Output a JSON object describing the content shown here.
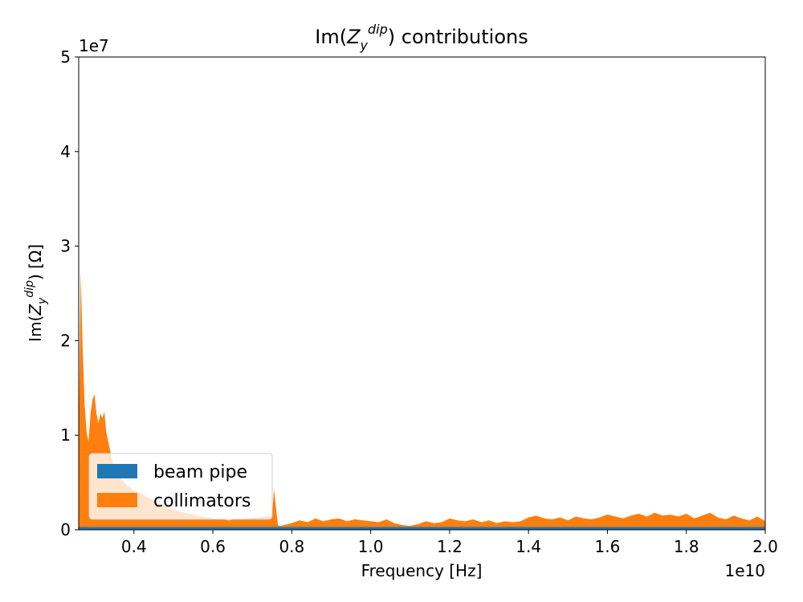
{
  "chart_data": {
    "type": "area",
    "stacked": true,
    "title": "Im(Z_y^dip) contributions",
    "title_parts": {
      "prefix": "Im(",
      "symbol": "Z",
      "sub": "y",
      "sup": "dip",
      "suffix": ") contributions"
    },
    "xlabel": "Frequency [Hz]",
    "ylabel": "Im(Z_y^dip) [Ω]",
    "ylabel_parts": {
      "prefix": "Im(",
      "symbol": "Z",
      "sub": "y",
      "sup": "dip",
      "suffix": ") [Ω]"
    },
    "x_offset_label": "1e10",
    "y_offset_label": "1e7",
    "xlim": [
      2600000000,
      20000000000
    ],
    "ylim": [
      0,
      50000000
    ],
    "x_ticks": [
      4000000000,
      6000000000,
      8000000000,
      10000000000,
      12000000000,
      14000000000,
      16000000000,
      18000000000,
      20000000000
    ],
    "x_tick_labels": [
      "0.4",
      "0.6",
      "0.8",
      "1.0",
      "1.2",
      "1.4",
      "1.6",
      "1.8",
      "2.0"
    ],
    "y_ticks": [
      0,
      10000000,
      20000000,
      30000000,
      40000000,
      50000000
    ],
    "y_tick_labels": [
      "0",
      "1",
      "2",
      "3",
      "4",
      "5"
    ],
    "grid": false,
    "legend_position": "lower-left",
    "x": [
      2600000000,
      2650000000,
      2700000000,
      2750000000,
      2800000000,
      2850000000,
      2900000000,
      2950000000,
      3000000000,
      3050000000,
      3100000000,
      3150000000,
      3200000000,
      3250000000,
      3300000000,
      3350000000,
      3400000000,
      3450000000,
      3500000000,
      3550000000,
      3600000000,
      3700000000,
      3800000000,
      3900000000,
      4000000000,
      4200000000,
      4400000000,
      4600000000,
      4800000000,
      5000000000,
      5300000000,
      5600000000,
      6000000000,
      6400000000,
      6800000000,
      7200000000,
      7500000000,
      7550000000,
      7600000000,
      7650000000,
      7700000000,
      8000000000,
      8200000000,
      8400000000,
      8600000000,
      8800000000,
      9000000000,
      9200000000,
      9400000000,
      9600000000,
      9800000000,
      10000000000,
      10200000000,
      10400000000,
      10600000000,
      10800000000,
      11000000000,
      11200000000,
      11400000000,
      11600000000,
      11800000000,
      12000000000,
      12200000000,
      12400000000,
      12600000000,
      12800000000,
      13000000000,
      13200000000,
      13400000000,
      13600000000,
      13800000000,
      14000000000,
      14200000000,
      14400000000,
      14600000000,
      14800000000,
      15000000000,
      15200000000,
      15400000000,
      15600000000,
      15800000000,
      16000000000,
      16200000000,
      16400000000,
      16600000000,
      16800000000,
      17000000000,
      17200000000,
      17400000000,
      17600000000,
      17800000000,
      18000000000,
      18200000000,
      18400000000,
      18600000000,
      18800000000,
      19000000000,
      19200000000,
      19400000000,
      19600000000,
      19800000000,
      20000000000
    ],
    "series": [
      {
        "name": "beam pipe",
        "color": "#1f77b4",
        "values": [
          300000,
          300000,
          300000,
          300000,
          300000,
          300000,
          300000,
          300000,
          300000,
          300000,
          300000,
          300000,
          300000,
          300000,
          300000,
          300000,
          300000,
          300000,
          300000,
          300000,
          300000,
          300000,
          300000,
          300000,
          300000,
          300000,
          300000,
          300000,
          300000,
          300000,
          300000,
          300000,
          300000,
          300000,
          300000,
          300000,
          300000,
          300000,
          300000,
          300000,
          300000,
          300000,
          300000,
          300000,
          300000,
          300000,
          300000,
          300000,
          300000,
          300000,
          300000,
          300000,
          300000,
          300000,
          300000,
          300000,
          300000,
          300000,
          300000,
          300000,
          300000,
          300000,
          300000,
          300000,
          300000,
          300000,
          300000,
          300000,
          300000,
          300000,
          300000,
          300000,
          300000,
          300000,
          300000,
          300000,
          300000,
          300000,
          300000,
          300000,
          300000,
          300000,
          300000,
          300000,
          300000,
          300000,
          300000,
          300000,
          300000,
          300000,
          300000,
          300000,
          300000,
          300000,
          300000,
          300000,
          300000,
          300000,
          300000,
          300000,
          300000,
          300000
        ]
      },
      {
        "name": "collimators",
        "color": "#ff7f0e",
        "values": [
          9000000,
          27000000,
          19000000,
          13000000,
          10000000,
          9000000,
          12000000,
          13500000,
          14000000,
          12000000,
          11000000,
          12000000,
          11500000,
          12200000,
          10000000,
          9000000,
          8000000,
          7000000,
          6500000,
          6000000,
          5500000,
          5000000,
          4500000,
          4200000,
          3800000,
          3500000,
          3000000,
          2600000,
          2200000,
          1800000,
          1500000,
          1200000,
          900000,
          700000,
          900000,
          1000000,
          1200000,
          4000000,
          2000000,
          200000,
          100000,
          400000,
          700000,
          500000,
          900000,
          600000,
          800000,
          900000,
          600000,
          800000,
          700000,
          600000,
          500000,
          800000,
          400000,
          200000,
          100000,
          300000,
          600000,
          400000,
          500000,
          900000,
          700000,
          600000,
          800000,
          500000,
          700000,
          400000,
          600000,
          500000,
          600000,
          1000000,
          1200000,
          900000,
          800000,
          1000000,
          700000,
          1100000,
          900000,
          800000,
          1000000,
          1300000,
          1100000,
          900000,
          1200000,
          1400000,
          1100000,
          1500000,
          1200000,
          1300000,
          1100000,
          1400000,
          900000,
          1200000,
          1500000,
          1000000,
          800000,
          1200000,
          900000,
          700000,
          1100000,
          600000
        ]
      }
    ]
  }
}
